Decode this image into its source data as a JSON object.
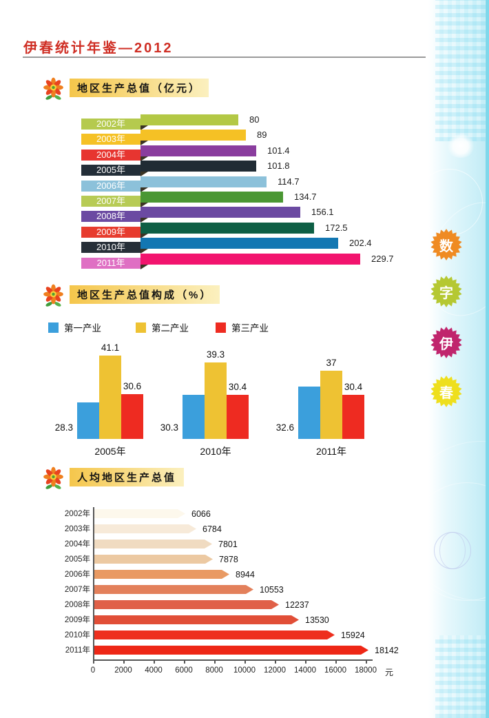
{
  "page": {
    "title": "伊春统计年鉴—2012"
  },
  "sections": [
    {
      "title": "地区生产总值（亿元）"
    },
    {
      "title": "地区生产总值构成（%）"
    },
    {
      "title": "人均地区生产总值"
    }
  ],
  "sidebar": {
    "badges": [
      {
        "char": "数",
        "color": "#ef8b23"
      },
      {
        "char": "字",
        "color": "#b5c832"
      },
      {
        "char": "伊",
        "color": "#c0256d"
      },
      {
        "char": "春",
        "color": "#eedf1d"
      }
    ]
  },
  "chart_data": [
    {
      "type": "bar",
      "orientation": "horizontal",
      "title": "地区生产总值（亿元）",
      "categories": [
        "2002年",
        "2003年",
        "2004年",
        "2005年",
        "2006年",
        "2007年",
        "2008年",
        "2009年",
        "2010年",
        "2011年"
      ],
      "values": [
        80,
        89,
        101.4,
        101.8,
        114.7,
        134.7,
        156.1,
        172.5,
        202.4,
        229.7
      ],
      "value_labels": [
        "80",
        "89",
        "101.4",
        "101.8",
        "114.7",
        "134.7",
        "156.1",
        "172.5",
        "202.4",
        "229.7"
      ],
      "label_colors": [
        "#b5ca4e",
        "#f5c125",
        "#e73530",
        "#232e38",
        "#8cc1da",
        "#b7cb55",
        "#6b4aa2",
        "#e73c2e",
        "#262f38",
        "#df6fc3"
      ],
      "bar_colors": [
        "#b3c845",
        "#f5c125",
        "#8a3d9e",
        "#202b34",
        "#8cc1da",
        "#4a9733",
        "#6b4aa2",
        "#0e5f45",
        "#1377b2",
        "#f2146e"
      ]
    },
    {
      "type": "bar",
      "orientation": "vertical-grouped",
      "title": "地区生产总值构成（%）",
      "categories": [
        "2005年",
        "2010年",
        "2011年"
      ],
      "series": [
        {
          "name": "第一产业",
          "color": "#3b9fdc",
          "values": [
            28.3,
            30.3,
            32.6
          ],
          "value_labels": [
            "28.3",
            "30.3",
            "32.6"
          ]
        },
        {
          "name": "第二产业",
          "color": "#eec233",
          "values": [
            41.1,
            39.3,
            37
          ],
          "value_labels": [
            "41.1",
            "39.3",
            "37"
          ]
        },
        {
          "name": "第三产业",
          "color": "#ee2b21",
          "values": [
            30.6,
            30.4,
            30.4
          ],
          "value_labels": [
            "30.6",
            "30.4",
            "30.4"
          ]
        }
      ],
      "legend_position": "top"
    },
    {
      "type": "bar",
      "orientation": "horizontal",
      "title": "人均地区生产总值",
      "categories": [
        "2002年",
        "2003年",
        "2004年",
        "2005年",
        "2006年",
        "2007年",
        "2008年",
        "2009年",
        "2010年",
        "2011年"
      ],
      "values": [
        6066,
        6784,
        7801,
        7878,
        8944,
        10553,
        12237,
        13530,
        15924,
        18142
      ],
      "value_labels": [
        "6066",
        "6784",
        "7801",
        "7878",
        "8944",
        "10553",
        "12237",
        "13530",
        "15924",
        "18142"
      ],
      "bar_colors": [
        "#fdf8ec",
        "#f7ead9",
        "#f0dbc1",
        "#ecc9a2",
        "#e99a63",
        "#e3805b",
        "#e06048",
        "#e14e37",
        "#ee2f1e",
        "#ee2716"
      ],
      "x_ticks": [
        "0",
        "2000",
        "4000",
        "6000",
        "8000",
        "10000",
        "12000",
        "14000",
        "16000",
        "18000"
      ],
      "x_unit": "元",
      "xlim": [
        0,
        18000
      ]
    }
  ]
}
